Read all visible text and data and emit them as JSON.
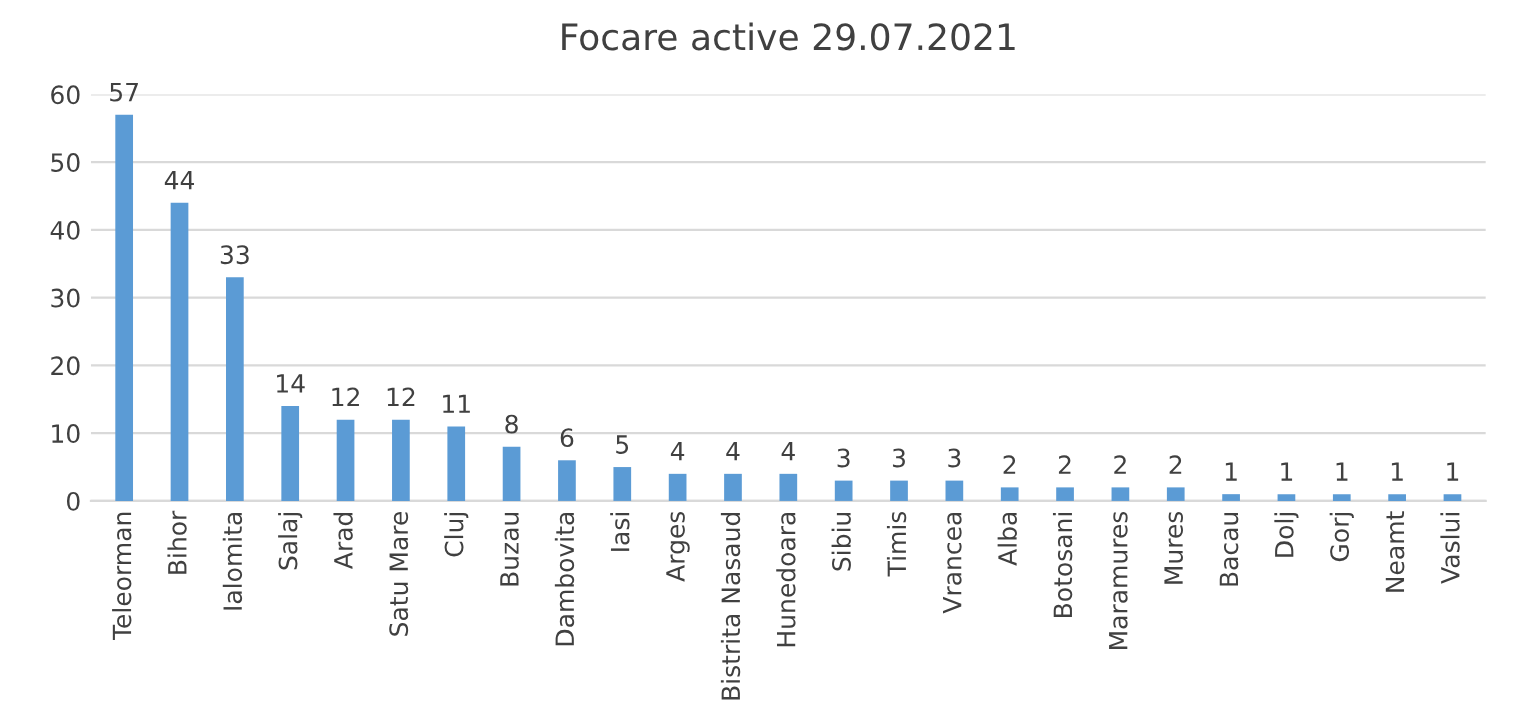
{
  "chart_data": {
    "type": "bar",
    "title": "Focare active 29.07.2021",
    "categories": [
      "Teleorman",
      "Bihor",
      "Ialomita",
      "Salaj",
      "Arad",
      "Satu Mare",
      "Cluj",
      "Buzau",
      "Dambovita",
      "Iasi",
      "Arges",
      "Bistrita Nasaud",
      "Hunedoara",
      "Sibiu",
      "Timis",
      "Vrancea",
      "Alba",
      "Botosani",
      "Maramures",
      "Mures",
      "Bacau",
      "Dolj",
      "Gorj",
      "Neamt",
      "Vaslui"
    ],
    "values": [
      57,
      44,
      33,
      14,
      12,
      12,
      11,
      8,
      6,
      5,
      4,
      4,
      4,
      3,
      3,
      3,
      2,
      2,
      2,
      2,
      1,
      1,
      1,
      1,
      1
    ],
    "color": "#5b9bd5",
    "ylim": [
      0,
      60
    ],
    "yticks": [
      0,
      10,
      20,
      30,
      40,
      50,
      60
    ],
    "grid": "y",
    "data_labels": true,
    "legend": false
  }
}
